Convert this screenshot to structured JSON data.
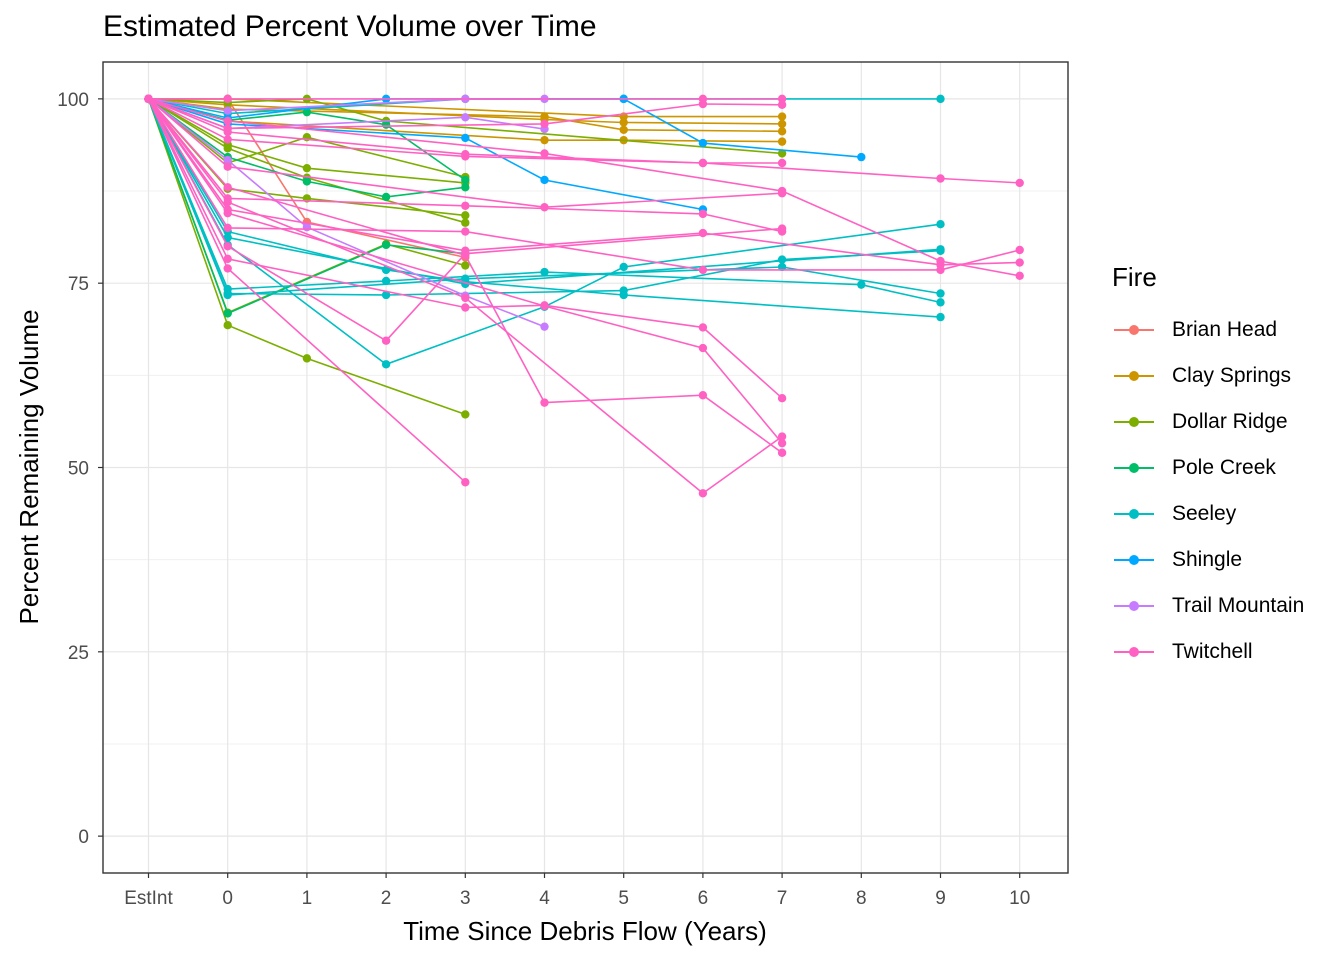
{
  "chart_data": {
    "type": "line",
    "title": "Estimated Percent Volume over Time",
    "xlabel": "Time Since Debris Flow (Years)",
    "ylabel": "Percent Remaining Volume",
    "x_categories": [
      "EstInt",
      "0",
      "1",
      "2",
      "3",
      "4",
      "5",
      "6",
      "7",
      "8",
      "9",
      "10"
    ],
    "yticks": [
      0,
      25,
      50,
      75,
      100
    ],
    "ylim": [
      -5,
      105
    ],
    "grid": true,
    "legend_title": "Fire",
    "legend_position": "right",
    "series": [
      {
        "name": "Brian Head",
        "color": "#F8766D",
        "lines": [
          [
            [
              "EstInt",
              100
            ],
            [
              "0",
              100
            ],
            [
              "1",
              83.3
            ],
            [
              "3",
              78.5
            ]
          ]
        ]
      },
      {
        "name": "Clay Springs",
        "color": "#CD9600",
        "lines": [
          [
            [
              "EstInt",
              100
            ],
            [
              "0",
              100
            ],
            [
              "5",
              97.6
            ],
            [
              "7",
              97.6
            ]
          ],
          [
            [
              "EstInt",
              100
            ],
            [
              "0",
              99.2
            ],
            [
              "4",
              97.2
            ],
            [
              "5",
              96.8
            ],
            [
              "7",
              96.6
            ]
          ],
          [
            [
              "EstInt",
              100
            ],
            [
              "0",
              98.6
            ],
            [
              "4",
              97.6
            ],
            [
              "5",
              95.8
            ],
            [
              "7",
              95.6
            ]
          ],
          [
            [
              "EstInt",
              100
            ],
            [
              "0",
              97.0
            ],
            [
              "4",
              94.4
            ],
            [
              "5",
              94.4
            ],
            [
              "7",
              94.2
            ]
          ]
        ]
      },
      {
        "name": "Dollar Ridge",
        "color": "#7CAE00",
        "lines": [
          [
            [
              "EstInt",
              100
            ],
            [
              "0",
              99.5
            ],
            [
              "1",
              100
            ],
            [
              "2",
              97.0
            ],
            [
              "7",
              92.6
            ]
          ],
          [
            [
              "EstInt",
              100
            ],
            [
              "0",
              91.3
            ],
            [
              "1",
              94.8
            ],
            [
              "3",
              89.4
            ]
          ],
          [
            [
              "EstInt",
              100
            ],
            [
              "0",
              93.8
            ],
            [
              "1",
              90.6
            ],
            [
              "3",
              88.6
            ]
          ],
          [
            [
              "EstInt",
              100
            ],
            [
              "0",
              87.8
            ],
            [
              "1",
              86.5
            ],
            [
              "3",
              84.2
            ]
          ],
          [
            [
              "EstInt",
              100
            ],
            [
              "0",
              93.3
            ],
            [
              "1",
              89.3
            ],
            [
              "3",
              83.2
            ]
          ],
          [
            [
              "EstInt",
              100
            ],
            [
              "0",
              69.3
            ],
            [
              "1",
              64.8
            ],
            [
              "3",
              57.2
            ]
          ],
          [
            [
              "EstInt",
              100
            ],
            [
              "0",
              71.0
            ],
            [
              "2",
              80.3
            ],
            [
              "3",
              77.4
            ]
          ]
        ]
      },
      {
        "name": "Pole Creek",
        "color": "#00BE67",
        "lines": [
          [
            [
              "EstInt",
              100
            ],
            [
              "0",
              97.1
            ],
            [
              "1",
              98.2
            ],
            [
              "2",
              96.5
            ],
            [
              "3",
              89.0
            ]
          ],
          [
            [
              "EstInt",
              100
            ],
            [
              "0",
              92.1
            ],
            [
              "1",
              88.8
            ],
            [
              "2",
              86.7
            ],
            [
              "3",
              88.0
            ]
          ],
          [
            [
              "EstInt",
              100
            ],
            [
              "0",
              70.9
            ],
            [
              "2",
              80.2
            ],
            [
              "3",
              79.0
            ]
          ]
        ]
      },
      {
        "name": "Seeley",
        "color": "#00BFC4",
        "lines": [
          [
            [
              "EstInt",
              100
            ],
            [
              "0",
              98.0
            ],
            [
              "3",
              100
            ],
            [
              "5",
              100
            ],
            [
              "9",
              100
            ]
          ],
          [
            [
              "EstInt",
              100
            ],
            [
              "0",
              82.0
            ],
            [
              "2",
              76.8
            ],
            [
              "3",
              75.2
            ],
            [
              "5",
              73.4
            ],
            [
              "9",
              70.4
            ]
          ],
          [
            [
              "EstInt",
              100
            ],
            [
              "0",
              80.2
            ],
            [
              "2",
              64.0
            ],
            [
              "4",
              71.8
            ],
            [
              "5",
              77.2
            ],
            [
              "9",
              83.0
            ]
          ],
          [
            [
              "EstInt",
              100
            ],
            [
              "0",
              74.2
            ],
            [
              "2",
              75.3
            ],
            [
              "4",
              76.5
            ],
            [
              "8",
              74.8
            ],
            [
              "9",
              72.4
            ]
          ],
          [
            [
              "EstInt",
              100
            ],
            [
              "0",
              73.6
            ],
            [
              "2",
              73.4
            ],
            [
              "5",
              74.0
            ],
            [
              "7",
              78.2
            ],
            [
              "9",
              79.4
            ]
          ],
          [
            [
              "EstInt",
              100
            ],
            [
              "0",
              73.4
            ],
            [
              "3",
              75.6
            ],
            [
              "7",
              77.2
            ],
            [
              "9",
              73.6
            ]
          ],
          [
            [
              "EstInt",
              100
            ],
            [
              "0",
              81.2
            ],
            [
              "3",
              74.9
            ],
            [
              "9",
              79.6
            ]
          ]
        ]
      },
      {
        "name": "Shingle",
        "color": "#00A9FF",
        "lines": [
          [
            [
              "EstInt",
              100
            ],
            [
              "0",
              97.4
            ],
            [
              "2",
              100
            ],
            [
              "5",
              100
            ],
            [
              "6",
              94.0
            ],
            [
              "8",
              92.1
            ]
          ],
          [
            [
              "EstInt",
              100
            ],
            [
              "0",
              96.6
            ],
            [
              "3",
              94.7
            ],
            [
              "4",
              89.0
            ],
            [
              "6",
              85.0
            ]
          ]
        ]
      },
      {
        "name": "Trail Mountain",
        "color": "#C77CFF",
        "lines": [
          [
            [
              "EstInt",
              100
            ],
            [
              "0",
              91.7
            ],
            [
              "1",
              82.6
            ],
            [
              "3",
              73.3
            ],
            [
              "4",
              69.1
            ]
          ],
          [
            [
              "EstInt",
              100
            ],
            [
              "0",
              98.4
            ],
            [
              "3",
              100
            ],
            [
              "4",
              100
            ]
          ],
          [
            [
              "EstInt",
              100
            ],
            [
              "0",
              96.0
            ],
            [
              "3",
              97.5
            ],
            [
              "4",
              95.9
            ]
          ]
        ]
      },
      {
        "name": "Twitchell",
        "color": "#FF61C3",
        "lines": [
          [
            [
              "EstInt",
              100
            ],
            [
              "0",
              100
            ],
            [
              "6",
              100
            ],
            [
              "7",
              100
            ]
          ],
          [
            [
              "EstInt",
              100
            ],
            [
              "0",
              96.0
            ],
            [
              "4",
              96.6
            ],
            [
              "6",
              99.3
            ],
            [
              "7",
              99.2
            ]
          ],
          [
            [
              "EstInt",
              100
            ],
            [
              "0",
              95.5
            ],
            [
              "3",
              92.5
            ],
            [
              "6",
              91.3
            ],
            [
              "9",
              89.2
            ],
            [
              "10",
              88.6
            ]
          ],
          [
            [
              "EstInt",
              100
            ],
            [
              "0",
              94.5
            ],
            [
              "3",
              92.2
            ],
            [
              "6",
              91.3
            ],
            [
              "7",
              91.3
            ]
          ],
          [
            [
              "EstInt",
              100
            ],
            [
              "0",
              97.0
            ],
            [
              "4",
              92.6
            ],
            [
              "7",
              87.5
            ],
            [
              "9",
              78.0
            ],
            [
              "10",
              76.0
            ]
          ],
          [
            [
              "EstInt",
              100
            ],
            [
              "0",
              90.8
            ],
            [
              "4",
              85.3
            ],
            [
              "7",
              87.2
            ]
          ],
          [
            [
              "EstInt",
              100
            ],
            [
              "0",
              86.5
            ],
            [
              "3",
              85.5
            ],
            [
              "6",
              84.4
            ],
            [
              "7",
              82.0
            ]
          ],
          [
            [
              "EstInt",
              100
            ],
            [
              "0",
              85.0
            ],
            [
              "3",
              79.4
            ],
            [
              "6",
              81.8
            ],
            [
              "9",
              77.5
            ],
            [
              "10",
              77.8
            ]
          ],
          [
            [
              "EstInt",
              100
            ],
            [
              "0",
              82.5
            ],
            [
              "3",
              82.0
            ],
            [
              "6",
              76.8
            ],
            [
              "9",
              76.8
            ],
            [
              "10",
              79.5
            ]
          ],
          [
            [
              "EstInt",
              100
            ],
            [
              "0",
              80.0
            ],
            [
              "2",
              67.2
            ],
            [
              "3",
              79.0
            ],
            [
              "7",
              82.4
            ]
          ],
          [
            [
              "EstInt",
              100
            ],
            [
              "0",
              78.3
            ],
            [
              "3",
              71.7
            ],
            [
              "4",
              72.0
            ],
            [
              "6",
              69.0
            ],
            [
              "7",
              59.4
            ]
          ],
          [
            [
              "EstInt",
              100
            ],
            [
              "0",
              77.0
            ],
            [
              "3",
              48.0
            ]
          ],
          [
            [
              "EstInt",
              100
            ],
            [
              "0",
              88.0
            ],
            [
              "3",
              78.8
            ],
            [
              "4",
              58.8
            ],
            [
              "6",
              59.8
            ],
            [
              "7",
              52.0
            ]
          ],
          [
            [
              "EstInt",
              100
            ],
            [
              "0",
              86.0
            ],
            [
              "3",
              73.0
            ],
            [
              "6",
              46.5
            ],
            [
              "7",
              54.2
            ]
          ],
          [
            [
              "EstInt",
              100
            ],
            [
              "0",
              84.5
            ],
            [
              "4",
              71.9
            ],
            [
              "6",
              66.2
            ],
            [
              "7",
              53.3
            ]
          ]
        ]
      }
    ]
  }
}
